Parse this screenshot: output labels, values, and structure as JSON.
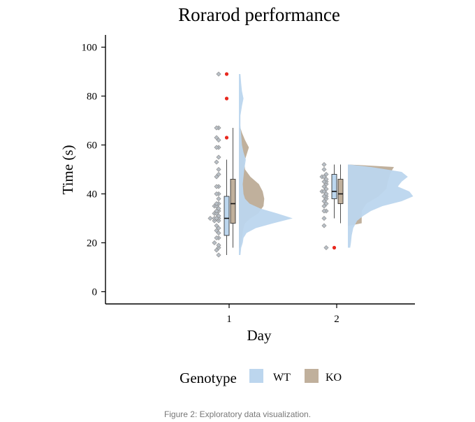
{
  "chart_data": {
    "type": "raincloud",
    "title": "Rorarod performance",
    "xlabel": "Day",
    "ylabel": "Time (s)",
    "categories": [
      "1",
      "2"
    ],
    "ylim": [
      -5,
      105
    ],
    "yticks": [
      0,
      20,
      40,
      60,
      80,
      100
    ],
    "legend": {
      "title": "Genotype",
      "placement": "bottom",
      "entries": [
        "WT",
        "KO"
      ]
    },
    "colors": {
      "WT": "#bcd6ee",
      "KO": "#c0b09c",
      "outlier": "#e8281e",
      "point": "#b8bfc6",
      "point_stroke": "#8c8c8c",
      "axis": "#000000"
    },
    "groups": [
      {
        "day": "1",
        "genotype": "WT",
        "box": {
          "min": 15,
          "q1": 23,
          "median": 30,
          "q3": 39,
          "max": 54
        },
        "outliers": [
          63,
          79,
          89
        ],
        "points": [
          15,
          18,
          19,
          20,
          22,
          24,
          26,
          29,
          29,
          30,
          30,
          30,
          31,
          32,
          33,
          34,
          35,
          36,
          38,
          40,
          43,
          48,
          50,
          55,
          59,
          62,
          67,
          89
        ],
        "density": [
          [
            15,
            0.02
          ],
          [
            18,
            0.03
          ],
          [
            20,
            0.05
          ],
          [
            22,
            0.06
          ],
          [
            24,
            0.1
          ],
          [
            26,
            0.22
          ],
          [
            28,
            0.45
          ],
          [
            30,
            0.7
          ],
          [
            32,
            0.5
          ],
          [
            34,
            0.28
          ],
          [
            36,
            0.14
          ],
          [
            38,
            0.08
          ],
          [
            40,
            0.06
          ],
          [
            44,
            0.05
          ],
          [
            50,
            0.07
          ],
          [
            54,
            0.09
          ],
          [
            57,
            0.06
          ],
          [
            60,
            0.04
          ],
          [
            64,
            0.03
          ],
          [
            68,
            0.02
          ],
          [
            72,
            0.02
          ],
          [
            76,
            0.04
          ],
          [
            79,
            0.06
          ],
          [
            82,
            0.04
          ],
          [
            85,
            0.03
          ],
          [
            89,
            0.02
          ]
        ]
      },
      {
        "day": "1",
        "genotype": "KO",
        "box": {
          "min": 18,
          "q1": 28,
          "median": 36,
          "q3": 46,
          "max": 67
        },
        "outliers": [],
        "points": [
          17,
          22,
          25,
          27,
          30,
          32,
          33,
          35,
          36,
          40,
          43,
          47,
          53,
          59,
          63,
          67
        ],
        "density": [
          [
            18,
            0.02
          ],
          [
            22,
            0.04
          ],
          [
            26,
            0.06
          ],
          [
            28,
            0.08
          ],
          [
            30,
            0.15
          ],
          [
            32,
            0.25
          ],
          [
            35,
            0.32
          ],
          [
            38,
            0.33
          ],
          [
            41,
            0.31
          ],
          [
            44,
            0.26
          ],
          [
            47,
            0.15
          ],
          [
            50,
            0.08
          ],
          [
            53,
            0.07
          ],
          [
            56,
            0.1
          ],
          [
            59,
            0.13
          ],
          [
            62,
            0.08
          ],
          [
            65,
            0.04
          ],
          [
            67,
            0.02
          ]
        ]
      },
      {
        "day": "2",
        "genotype": "WT",
        "box": {
          "min": 30,
          "q1": 38,
          "median": 41,
          "q3": 48,
          "max": 52
        },
        "outliers": [
          18
        ],
        "points": [
          18,
          33,
          36,
          38,
          39,
          40,
          41,
          42,
          44,
          45,
          46,
          47,
          48
        ],
        "density": [
          [
            18,
            0.03
          ],
          [
            20,
            0.04
          ],
          [
            23,
            0.05
          ],
          [
            26,
            0.07
          ],
          [
            29,
            0.12
          ],
          [
            31,
            0.2
          ],
          [
            33,
            0.3
          ],
          [
            35,
            0.45
          ],
          [
            37,
            0.7
          ],
          [
            39,
            0.85
          ],
          [
            41,
            0.8
          ],
          [
            43,
            0.65
          ],
          [
            45,
            0.7
          ],
          [
            47,
            0.78
          ],
          [
            49,
            0.7
          ],
          [
            51,
            0.3
          ],
          [
            52,
            0.02
          ]
        ]
      },
      {
        "day": "2",
        "genotype": "KO",
        "box": {
          "min": 28,
          "q1": 36,
          "median": 40,
          "q3": 46,
          "max": 52
        },
        "outliers": [],
        "points": [
          27,
          30,
          33,
          35,
          37,
          39,
          41,
          43,
          45,
          47,
          50,
          52
        ],
        "density": [
          [
            27,
            0.02
          ],
          [
            28,
            0.18
          ],
          [
            30,
            0.18
          ],
          [
            33,
            0.18
          ],
          [
            36,
            0.24
          ],
          [
            39,
            0.4
          ],
          [
            42,
            0.5
          ],
          [
            45,
            0.52
          ],
          [
            48,
            0.55
          ],
          [
            50,
            0.58
          ],
          [
            51,
            0.6
          ],
          [
            52,
            0.02
          ]
        ]
      }
    ]
  },
  "caption": "Figure 2: Exploratory data visualization."
}
